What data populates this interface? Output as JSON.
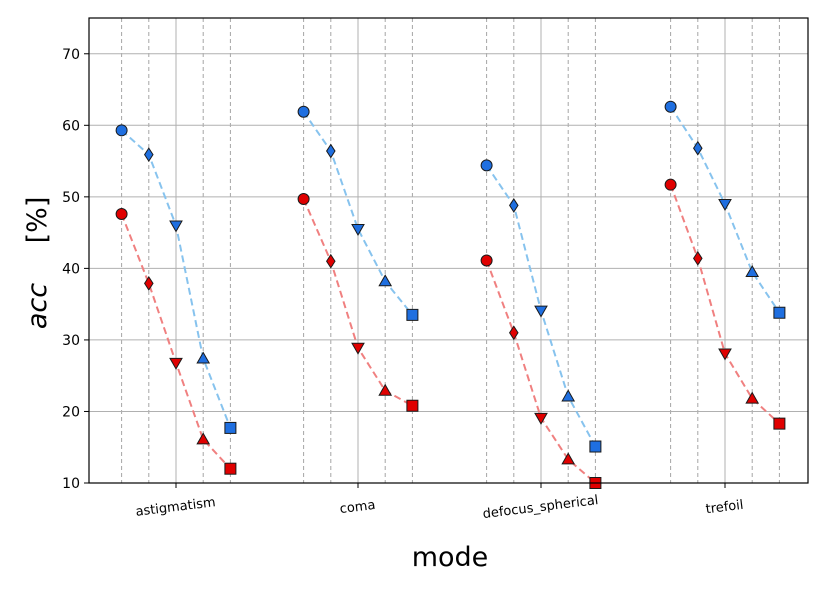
{
  "chart_data": {
    "type": "line",
    "xlabel": "mode",
    "ylabel": "acc",
    "ylabel_unit": "[%]",
    "ylim": [
      10,
      75
    ],
    "yticks": [
      10,
      20,
      30,
      40,
      50,
      60,
      70
    ],
    "grid": true,
    "categories": [
      "astigmatism",
      "coma",
      "defocus_spherical",
      "trefoil"
    ],
    "markers": [
      "circle",
      "diamond",
      "triangle-down",
      "triangle-up",
      "square"
    ],
    "series": [
      {
        "color": "#87c3ee",
        "marker_fill": "#1f6fe0",
        "values": [
          [
            59.3,
            55.9,
            46.0,
            27.4,
            17.7
          ],
          [
            61.9,
            56.4,
            45.5,
            38.2,
            33.5
          ],
          [
            54.4,
            48.8,
            34.1,
            22.1,
            15.1
          ],
          [
            62.6,
            56.8,
            49.0,
            39.5,
            33.8
          ]
        ]
      },
      {
        "color": "#f08080",
        "marker_fill": "#e00000",
        "values": [
          [
            47.6,
            37.9,
            26.8,
            16.1,
            12.0
          ],
          [
            49.7,
            41.0,
            28.9,
            22.9,
            20.8
          ],
          [
            41.1,
            31.0,
            19.1,
            13.3,
            10.0
          ],
          [
            51.7,
            41.4,
            28.1,
            21.8,
            18.3
          ]
        ]
      }
    ]
  }
}
